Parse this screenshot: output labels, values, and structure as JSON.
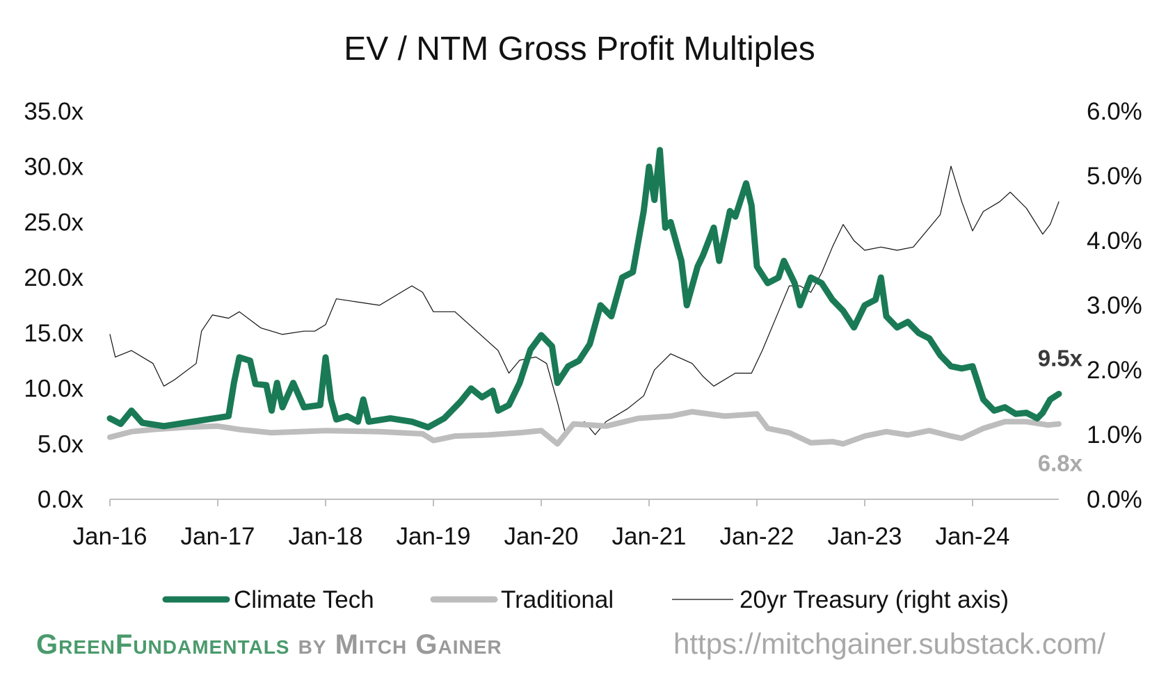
{
  "chart_data": {
    "type": "line",
    "title": "EV / NTM Gross Profit Multiples",
    "left_axis": {
      "range": [
        0,
        35
      ],
      "ticks": [
        "0.0x",
        "5.0x",
        "10.0x",
        "15.0x",
        "20.0x",
        "25.0x",
        "30.0x",
        "35.0x"
      ]
    },
    "right_axis": {
      "range": [
        0,
        6
      ],
      "ticks": [
        "0.0%",
        "1.0%",
        "2.0%",
        "3.0%",
        "4.0%",
        "5.0%",
        "6.0%"
      ]
    },
    "x_ticks": [
      "Jan-16",
      "Jan-17",
      "Jan-18",
      "Jan-19",
      "Jan-20",
      "Jan-21",
      "Jan-22",
      "Jan-23",
      "Jan-24"
    ],
    "x_range": [
      2016.0,
      2024.8
    ],
    "series": [
      {
        "name": "Climate Tech",
        "axis": "left",
        "color": "#1a7a56",
        "end_label": "9.5x",
        "points": [
          [
            2016.0,
            7.3
          ],
          [
            2016.1,
            6.8
          ],
          [
            2016.2,
            8.0
          ],
          [
            2016.3,
            6.9
          ],
          [
            2016.5,
            6.6
          ],
          [
            2016.7,
            6.9
          ],
          [
            2016.9,
            7.2
          ],
          [
            2017.1,
            7.5
          ],
          [
            2017.15,
            10.5
          ],
          [
            2017.2,
            12.8
          ],
          [
            2017.3,
            12.5
          ],
          [
            2017.35,
            10.4
          ],
          [
            2017.45,
            10.3
          ],
          [
            2017.5,
            8.0
          ],
          [
            2017.55,
            10.5
          ],
          [
            2017.6,
            8.3
          ],
          [
            2017.7,
            10.5
          ],
          [
            2017.8,
            8.3
          ],
          [
            2017.95,
            8.5
          ],
          [
            2018.0,
            12.8
          ],
          [
            2018.05,
            9.0
          ],
          [
            2018.1,
            7.2
          ],
          [
            2018.2,
            7.5
          ],
          [
            2018.3,
            7.0
          ],
          [
            2018.35,
            9.0
          ],
          [
            2018.4,
            7.0
          ],
          [
            2018.6,
            7.3
          ],
          [
            2018.8,
            7.0
          ],
          [
            2018.95,
            6.5
          ],
          [
            2019.1,
            7.3
          ],
          [
            2019.25,
            8.8
          ],
          [
            2019.35,
            10.0
          ],
          [
            2019.45,
            9.2
          ],
          [
            2019.55,
            9.8
          ],
          [
            2019.6,
            8.0
          ],
          [
            2019.7,
            8.5
          ],
          [
            2019.8,
            10.5
          ],
          [
            2019.9,
            13.5
          ],
          [
            2020.0,
            14.8
          ],
          [
            2020.1,
            13.8
          ],
          [
            2020.15,
            10.5
          ],
          [
            2020.25,
            12.0
          ],
          [
            2020.35,
            12.5
          ],
          [
            2020.45,
            14.0
          ],
          [
            2020.55,
            17.5
          ],
          [
            2020.65,
            16.5
          ],
          [
            2020.75,
            20.0
          ],
          [
            2020.85,
            20.5
          ],
          [
            2020.95,
            26.0
          ],
          [
            2021.0,
            30.0
          ],
          [
            2021.05,
            27.0
          ],
          [
            2021.1,
            31.5
          ],
          [
            2021.15,
            24.5
          ],
          [
            2021.2,
            25.0
          ],
          [
            2021.3,
            21.5
          ],
          [
            2021.35,
            17.5
          ],
          [
            2021.45,
            21.0
          ],
          [
            2021.5,
            22.0
          ],
          [
            2021.6,
            24.5
          ],
          [
            2021.65,
            21.5
          ],
          [
            2021.75,
            26.0
          ],
          [
            2021.8,
            25.5
          ],
          [
            2021.9,
            28.5
          ],
          [
            2021.95,
            26.5
          ],
          [
            2022.0,
            21.0
          ],
          [
            2022.1,
            19.5
          ],
          [
            2022.2,
            20.0
          ],
          [
            2022.25,
            21.5
          ],
          [
            2022.35,
            19.5
          ],
          [
            2022.4,
            17.5
          ],
          [
            2022.5,
            20.0
          ],
          [
            2022.6,
            19.5
          ],
          [
            2022.7,
            18.0
          ],
          [
            2022.8,
            17.0
          ],
          [
            2022.9,
            15.5
          ],
          [
            2023.0,
            17.5
          ],
          [
            2023.1,
            18.0
          ],
          [
            2023.15,
            20.0
          ],
          [
            2023.2,
            16.5
          ],
          [
            2023.3,
            15.5
          ],
          [
            2023.4,
            16.0
          ],
          [
            2023.5,
            15.0
          ],
          [
            2023.6,
            14.5
          ],
          [
            2023.7,
            13.0
          ],
          [
            2023.8,
            12.0
          ],
          [
            2023.9,
            11.8
          ],
          [
            2024.0,
            12.0
          ],
          [
            2024.1,
            9.0
          ],
          [
            2024.2,
            8.0
          ],
          [
            2024.3,
            8.3
          ],
          [
            2024.4,
            7.7
          ],
          [
            2024.5,
            7.8
          ],
          [
            2024.6,
            7.3
          ],
          [
            2024.65,
            7.8
          ],
          [
            2024.72,
            9.0
          ],
          [
            2024.8,
            9.5
          ]
        ]
      },
      {
        "name": "Traditional",
        "axis": "left",
        "color": "#bdbdbd",
        "end_label": "6.8x",
        "points": [
          [
            2016.0,
            5.6
          ],
          [
            2016.2,
            6.1
          ],
          [
            2016.4,
            6.3
          ],
          [
            2016.7,
            6.5
          ],
          [
            2017.0,
            6.6
          ],
          [
            2017.2,
            6.3
          ],
          [
            2017.5,
            6.0
          ],
          [
            2018.0,
            6.2
          ],
          [
            2018.5,
            6.1
          ],
          [
            2018.9,
            5.9
          ],
          [
            2019.0,
            5.3
          ],
          [
            2019.2,
            5.7
          ],
          [
            2019.5,
            5.8
          ],
          [
            2019.8,
            6.0
          ],
          [
            2020.0,
            6.2
          ],
          [
            2020.15,
            5.0
          ],
          [
            2020.3,
            6.8
          ],
          [
            2020.6,
            6.6
          ],
          [
            2020.9,
            7.3
          ],
          [
            2021.2,
            7.5
          ],
          [
            2021.4,
            7.9
          ],
          [
            2021.7,
            7.5
          ],
          [
            2022.0,
            7.7
          ],
          [
            2022.1,
            6.4
          ],
          [
            2022.3,
            6.0
          ],
          [
            2022.5,
            5.1
          ],
          [
            2022.7,
            5.2
          ],
          [
            2022.8,
            5.0
          ],
          [
            2023.0,
            5.7
          ],
          [
            2023.2,
            6.1
          ],
          [
            2023.4,
            5.8
          ],
          [
            2023.6,
            6.2
          ],
          [
            2023.8,
            5.7
          ],
          [
            2023.9,
            5.5
          ],
          [
            2024.1,
            6.4
          ],
          [
            2024.3,
            7.0
          ],
          [
            2024.5,
            7.0
          ],
          [
            2024.7,
            6.7
          ],
          [
            2024.8,
            6.8
          ]
        ]
      },
      {
        "name": "20yr Treasury (right axis)",
        "axis": "right",
        "color": "#111111",
        "points": [
          [
            2016.0,
            2.55
          ],
          [
            2016.05,
            2.2
          ],
          [
            2016.2,
            2.3
          ],
          [
            2016.4,
            2.1
          ],
          [
            2016.5,
            1.75
          ],
          [
            2016.6,
            1.85
          ],
          [
            2016.8,
            2.1
          ],
          [
            2016.85,
            2.6
          ],
          [
            2016.95,
            2.85
          ],
          [
            2017.1,
            2.8
          ],
          [
            2017.2,
            2.9
          ],
          [
            2017.4,
            2.65
          ],
          [
            2017.6,
            2.55
          ],
          [
            2017.8,
            2.6
          ],
          [
            2017.9,
            2.6
          ],
          [
            2018.0,
            2.7
          ],
          [
            2018.1,
            3.1
          ],
          [
            2018.3,
            3.05
          ],
          [
            2018.5,
            3.0
          ],
          [
            2018.7,
            3.2
          ],
          [
            2018.8,
            3.3
          ],
          [
            2018.9,
            3.2
          ],
          [
            2019.0,
            2.9
          ],
          [
            2019.2,
            2.9
          ],
          [
            2019.4,
            2.6
          ],
          [
            2019.6,
            2.3
          ],
          [
            2019.7,
            1.95
          ],
          [
            2019.8,
            2.15
          ],
          [
            2019.95,
            2.2
          ],
          [
            2020.05,
            2.1
          ],
          [
            2020.15,
            1.5
          ],
          [
            2020.22,
            1.05
          ],
          [
            2020.4,
            1.2
          ],
          [
            2020.5,
            1.0
          ],
          [
            2020.6,
            1.2
          ],
          [
            2020.8,
            1.4
          ],
          [
            2020.95,
            1.6
          ],
          [
            2021.05,
            2.0
          ],
          [
            2021.2,
            2.25
          ],
          [
            2021.4,
            2.1
          ],
          [
            2021.5,
            1.9
          ],
          [
            2021.6,
            1.75
          ],
          [
            2021.8,
            1.95
          ],
          [
            2021.95,
            1.95
          ],
          [
            2022.05,
            2.3
          ],
          [
            2022.2,
            2.9
          ],
          [
            2022.3,
            3.3
          ],
          [
            2022.4,
            3.3
          ],
          [
            2022.5,
            3.2
          ],
          [
            2022.6,
            3.5
          ],
          [
            2022.7,
            3.9
          ],
          [
            2022.8,
            4.25
          ],
          [
            2022.9,
            4.0
          ],
          [
            2023.0,
            3.85
          ],
          [
            2023.15,
            3.9
          ],
          [
            2023.3,
            3.85
          ],
          [
            2023.45,
            3.9
          ],
          [
            2023.55,
            4.1
          ],
          [
            2023.7,
            4.4
          ],
          [
            2023.8,
            5.15
          ],
          [
            2023.9,
            4.6
          ],
          [
            2024.0,
            4.15
          ],
          [
            2024.1,
            4.45
          ],
          [
            2024.25,
            4.6
          ],
          [
            2024.35,
            4.75
          ],
          [
            2024.5,
            4.5
          ],
          [
            2024.65,
            4.1
          ],
          [
            2024.72,
            4.25
          ],
          [
            2024.8,
            4.6
          ]
        ]
      }
    ]
  },
  "footer": {
    "brand_green": "GreenFundamentals",
    "brand_grey": "by Mitch Gainer",
    "url": "https://mitchgainer.substack.com/"
  }
}
